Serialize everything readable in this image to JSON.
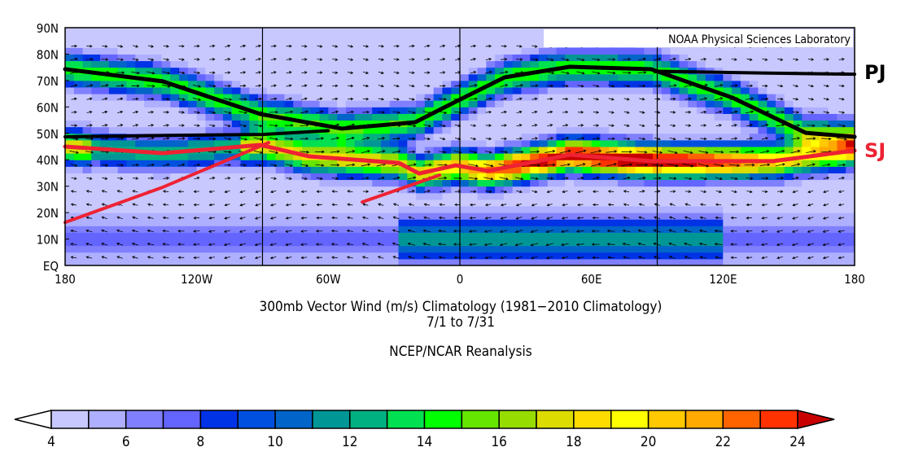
{
  "credit": "NOAA Physical Sciences Laboratory",
  "title_line1": "300mb Vector Wind (m/s) Climatology (1981−2010 Climatology)",
  "title_line2": "7/1  to 7/31",
  "source": "NCEP/NCAR Reanalysis",
  "lat_labels": [
    "90N",
    "80N",
    "70N",
    "60N",
    "50N",
    "40N",
    "30N",
    "20N",
    "10N",
    "EQ"
  ],
  "lon_labels": [
    "180",
    "120W",
    "60W",
    "0",
    "60E",
    "120E",
    "180"
  ],
  "jet_labels": {
    "pj": "PJ",
    "sj": "SJ",
    "pj_color": "#000000",
    "sj_color": "#ee2233"
  },
  "colorbar": {
    "levels": [
      4,
      5,
      6,
      7,
      8,
      9,
      10,
      11,
      12,
      13,
      14,
      15,
      16,
      17,
      18,
      19,
      20,
      21,
      22,
      23,
      24
    ],
    "tick_labels": [
      "4",
      "6",
      "8",
      "10",
      "12",
      "14",
      "16",
      "18",
      "20",
      "22",
      "24"
    ],
    "colors": [
      "#c8c8ff",
      "#afafff",
      "#8080ff",
      "#6464ff",
      "#0032e6",
      "#0050e0",
      "#0064c8",
      "#009696",
      "#00b080",
      "#00e050",
      "#00ff00",
      "#64e600",
      "#96dc00",
      "#dcdc00",
      "#ffdc00",
      "#ffff00",
      "#ffc800",
      "#ffaa00",
      "#ff6400",
      "#ff3200"
    ],
    "under_color": "#ffffff",
    "over_color": "#c80000"
  },
  "jets": {
    "polar": [
      [
        -180,
        74.3
      ],
      [
        -135.5,
        69.7
      ],
      [
        -90.9,
        57.3
      ],
      [
        -53.8,
        51.8
      ],
      [
        -20.4,
        54.2
      ],
      [
        -1.9,
        62
      ],
      [
        20.4,
        71.2
      ],
      [
        50.1,
        75.2
      ],
      [
        87.2,
        74.3
      ],
      [
        124.3,
        63.5
      ],
      [
        157.7,
        50.2
      ],
      [
        180,
        48.7
      ]
    ],
    "polar_branches": [
      [
        [
          -180,
          48.7
        ],
        [
          -135,
          49.2
        ],
        [
          -90,
          49.6
        ],
        [
          -60,
          51
        ]
      ],
      [
        [
          90,
          73.5
        ],
        [
          140,
          72.8
        ],
        [
          180,
          72.4
        ]
      ]
    ],
    "subtropical": [
      [
        -180,
        45
      ],
      [
        -135.5,
        42.5
      ],
      [
        -91,
        45.6
      ],
      [
        -68.7,
        41.3
      ],
      [
        -27.8,
        38.8
      ],
      [
        -18.6,
        34.8
      ],
      [
        -1.9,
        37.9
      ],
      [
        13,
        35.8
      ],
      [
        50,
        41.9
      ],
      [
        87.2,
        39.5
      ],
      [
        142.9,
        39.5
      ],
      [
        180,
        43.5
      ]
    ],
    "subtropical_branches": [
      [
        [
          -180,
          16.3
        ],
        [
          -135.5,
          29.6
        ],
        [
          -87.2,
          46.5
        ]
      ],
      [
        [
          -44.5,
          24
        ],
        [
          -9.2,
          34.2
        ]
      ]
    ]
  }
}
